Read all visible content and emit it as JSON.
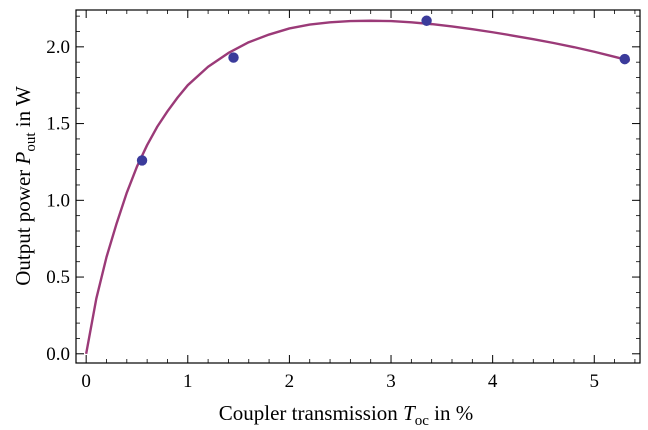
{
  "chart_data": {
    "type": "scatter",
    "title": "",
    "xlabel": {
      "prefix": "Coupler transmission ",
      "symbol": "T",
      "subscript": "oc",
      "suffix": " in %"
    },
    "ylabel": {
      "prefix": "Output  power ",
      "symbol": "P",
      "subscript": "out",
      "suffix": " in W"
    },
    "xlim": [
      -0.1,
      5.45
    ],
    "ylim": [
      -0.06,
      2.24
    ],
    "x_ticks": [
      0,
      1,
      2,
      3,
      4,
      5
    ],
    "x_tick_labels": [
      "0",
      "1",
      "2",
      "3",
      "4",
      "5"
    ],
    "y_ticks": [
      0.0,
      0.5,
      1.0,
      1.5,
      2.0
    ],
    "y_tick_labels": [
      "0.0",
      "0.5",
      "1.0",
      "1.5",
      "2.0"
    ],
    "grid": false,
    "series": [
      {
        "kind": "points",
        "color": "#3b3b9b",
        "x": [
          0.55,
          1.45,
          3.35,
          5.3
        ],
        "y": [
          1.26,
          1.93,
          2.17,
          1.92
        ]
      },
      {
        "kind": "fit-line",
        "color": "#9b3a78",
        "x": [
          0.0,
          0.1,
          0.2,
          0.3,
          0.4,
          0.5,
          0.6,
          0.7,
          0.8,
          0.9,
          1.0,
          1.2,
          1.4,
          1.6,
          1.8,
          2.0,
          2.2,
          2.4,
          2.6,
          2.8,
          3.0,
          3.2,
          3.4,
          3.6,
          3.8,
          4.0,
          4.2,
          4.4,
          4.6,
          4.8,
          5.0,
          5.2,
          5.35
        ],
        "y": [
          0.0,
          0.36,
          0.63,
          0.85,
          1.05,
          1.22,
          1.36,
          1.48,
          1.58,
          1.67,
          1.75,
          1.87,
          1.96,
          2.03,
          2.08,
          2.12,
          2.145,
          2.16,
          2.168,
          2.17,
          2.168,
          2.16,
          2.148,
          2.133,
          2.115,
          2.095,
          2.073,
          2.05,
          2.025,
          1.998,
          1.968,
          1.935,
          1.91
        ]
      }
    ]
  }
}
